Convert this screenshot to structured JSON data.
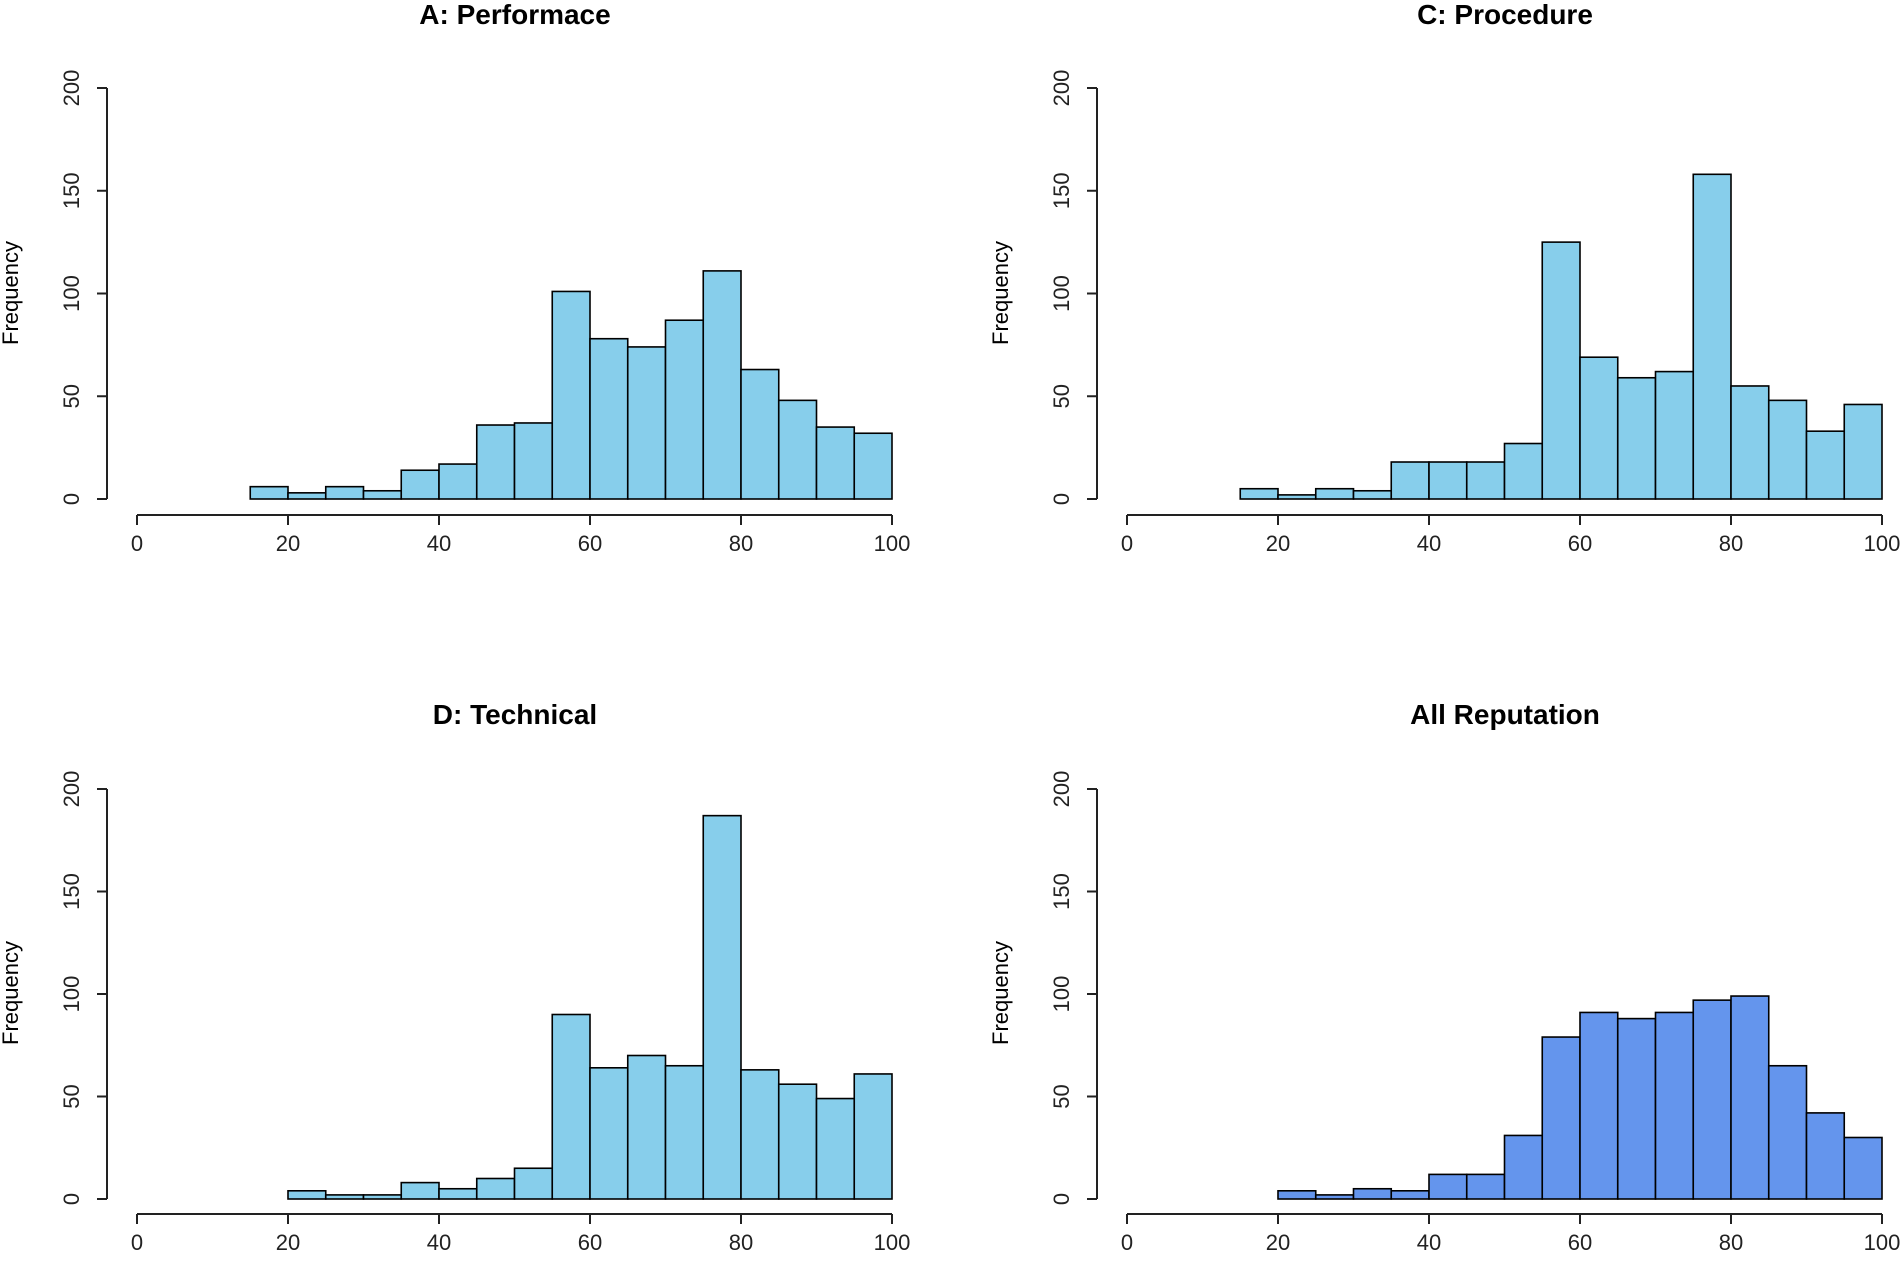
{
  "chart_data": [
    {
      "type": "bar",
      "title": "A: Performace",
      "xlabel": "",
      "ylabel": "Frequency",
      "bin_width": 5,
      "bin_starts": [
        0,
        5,
        10,
        15,
        20,
        25,
        30,
        35,
        40,
        45,
        50,
        55,
        60,
        65,
        70,
        75,
        80,
        85,
        90,
        95
      ],
      "values": [
        0,
        0,
        0,
        6,
        3,
        6,
        4,
        14,
        17,
        36,
        37,
        101,
        78,
        74,
        87,
        111,
        63,
        48,
        35,
        32
      ],
      "xlim": [
        0,
        100
      ],
      "ylim": [
        0,
        200
      ],
      "xticks": [
        "0",
        "20",
        "40",
        "60",
        "80",
        "100"
      ],
      "yticks": [
        "0",
        "50",
        "100",
        "150",
        "200"
      ],
      "color": "#87CEEB"
    },
    {
      "type": "bar",
      "title": "C: Procedure",
      "xlabel": "",
      "ylabel": "Frequency",
      "bin_width": 5,
      "bin_starts": [
        0,
        5,
        10,
        15,
        20,
        25,
        30,
        35,
        40,
        45,
        50,
        55,
        60,
        65,
        70,
        75,
        80,
        85,
        90,
        95
      ],
      "values": [
        0,
        0,
        0,
        5,
        2,
        5,
        4,
        18,
        18,
        18,
        27,
        125,
        69,
        59,
        62,
        158,
        55,
        48,
        33,
        46
      ],
      "xlim": [
        0,
        100
      ],
      "ylim": [
        0,
        200
      ],
      "xticks": [
        "0",
        "20",
        "40",
        "60",
        "80",
        "100"
      ],
      "yticks": [
        "0",
        "50",
        "100",
        "150",
        "200"
      ],
      "color": "#87CEEB"
    },
    {
      "type": "bar",
      "title": "D: Technical",
      "xlabel": "",
      "ylabel": "Frequency",
      "bin_width": 5,
      "bin_starts": [
        0,
        5,
        10,
        15,
        20,
        25,
        30,
        35,
        40,
        45,
        50,
        55,
        60,
        65,
        70,
        75,
        80,
        85,
        90,
        95
      ],
      "values": [
        0,
        0,
        0,
        0,
        4,
        2,
        2,
        8,
        5,
        10,
        15,
        90,
        64,
        70,
        65,
        187,
        63,
        56,
        49,
        61
      ],
      "xlim": [
        0,
        100
      ],
      "ylim": [
        0,
        200
      ],
      "xticks": [
        "0",
        "20",
        "40",
        "60",
        "80",
        "100"
      ],
      "yticks": [
        "0",
        "50",
        "100",
        "150",
        "200"
      ],
      "color": "#87CEEB"
    },
    {
      "type": "bar",
      "title": "All Reputation",
      "xlabel": "",
      "ylabel": "Frequency",
      "bin_width": 5,
      "bin_starts": [
        0,
        5,
        10,
        15,
        20,
        25,
        30,
        35,
        40,
        45,
        50,
        55,
        60,
        65,
        70,
        75,
        80,
        85,
        90,
        95
      ],
      "values": [
        0,
        0,
        0,
        0,
        4,
        2,
        5,
        4,
        12,
        12,
        31,
        79,
        91,
        88,
        91,
        97,
        99,
        65,
        42,
        30
      ],
      "xlim": [
        0,
        100
      ],
      "ylim": [
        0,
        200
      ],
      "xticks": [
        "0",
        "20",
        "40",
        "60",
        "80",
        "100"
      ],
      "yticks": [
        "0",
        "50",
        "100",
        "150",
        "200"
      ],
      "color": "#6495ED"
    }
  ]
}
